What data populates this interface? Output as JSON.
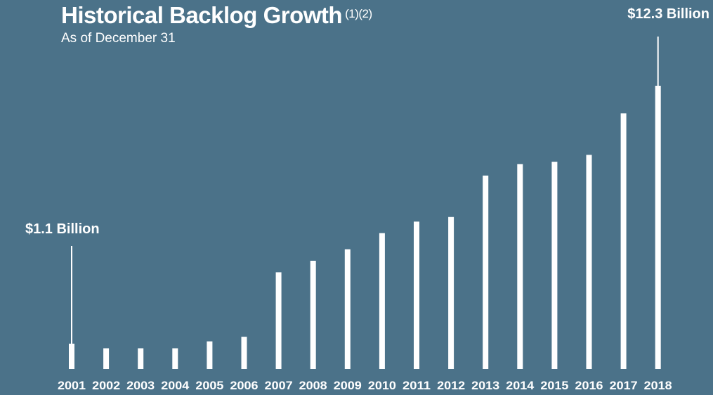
{
  "header": {
    "title": "Historical Backlog Growth",
    "footnote_marks": "(1)(2)",
    "subtitle": "As of December 31"
  },
  "chart_data": {
    "type": "bar",
    "title": "Historical Backlog Growth",
    "subtitle": "As of December 31",
    "categories": [
      "2001",
      "2002",
      "2003",
      "2004",
      "2005",
      "2006",
      "2007",
      "2008",
      "2009",
      "2010",
      "2011",
      "2012",
      "2013",
      "2014",
      "2015",
      "2016",
      "2017",
      "2018"
    ],
    "values": [
      1.1,
      0.9,
      0.9,
      0.9,
      1.2,
      1.4,
      4.2,
      4.7,
      5.2,
      5.9,
      6.4,
      6.6,
      8.4,
      8.9,
      9.0,
      9.3,
      11.1,
      12.3
    ],
    "ylim": [
      0,
      12.3
    ],
    "annotations": [
      {
        "category": "2001",
        "label": "$1.1 Billion"
      },
      {
        "category": "2018",
        "label": "$12.3 Billion"
      }
    ],
    "colors": {
      "background": "#4b7289",
      "bar": "#ffffff"
    },
    "grid": false
  }
}
